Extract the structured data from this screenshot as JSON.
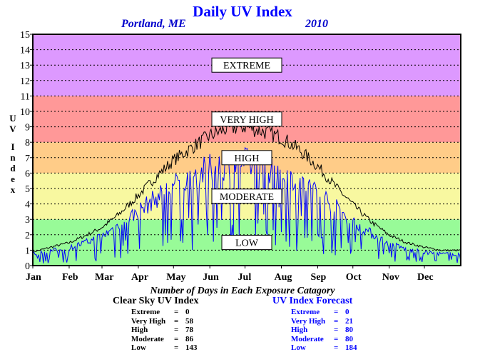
{
  "title": "Daily UV Index",
  "location": "Portland, ME",
  "year": "2010",
  "counts_title": "Number of Days in Each Exposure Catagory",
  "clear_sky": {
    "title": "Clear Sky UV Index",
    "rows": [
      {
        "cat": "Extreme",
        "eq": "=",
        "num": "0"
      },
      {
        "cat": "Very High",
        "eq": "=",
        "num": "58"
      },
      {
        "cat": "High",
        "eq": "=",
        "num": "78"
      },
      {
        "cat": "Moderate",
        "eq": "=",
        "num": "86"
      },
      {
        "cat": "Low",
        "eq": "=",
        "num": "143"
      }
    ]
  },
  "forecast": {
    "title": "UV Index Forecast",
    "rows": [
      {
        "cat": "Extreme",
        "eq": "=",
        "num": "0"
      },
      {
        "cat": "Very High",
        "eq": "=",
        "num": "21"
      },
      {
        "cat": "High",
        "eq": "=",
        "num": "80"
      },
      {
        "cat": "Moderate",
        "eq": "=",
        "num": "80"
      },
      {
        "cat": "Low",
        "eq": "=",
        "num": "184"
      }
    ]
  },
  "chart_data": {
    "type": "line",
    "title": "Daily UV Index",
    "ylabel": "UV Index",
    "xlabel": "",
    "ylim": [
      0,
      15
    ],
    "xlim": [
      1,
      366
    ],
    "y_ticks": [
      "0",
      "1",
      "2",
      "3",
      "4",
      "5",
      "6",
      "7",
      "8",
      "9",
      "10",
      "11",
      "12",
      "13",
      "14",
      "15"
    ],
    "x_ticks": [
      "Jan",
      "Feb",
      "Mar",
      "Apr",
      "May",
      "Jun",
      "Jul",
      "Aug",
      "Sep",
      "Oct",
      "Nov",
      "Dec"
    ],
    "grid": true,
    "bands": [
      {
        "label": "LOW",
        "from": 0,
        "to": 3,
        "color": "#98fb98"
      },
      {
        "label": "MODERATE",
        "from": 3,
        "to": 6,
        "color": "#f8f8a0"
      },
      {
        "label": "HIGH",
        "from": 6,
        "to": 8,
        "color": "#ffcc88"
      },
      {
        "label": "VERY HIGH",
        "from": 8,
        "to": 11,
        "color": "#ff9898"
      },
      {
        "label": "EXTREME",
        "from": 11,
        "to": 15,
        "color": "#dd99ff"
      }
    ],
    "series": [
      {
        "name": "Clear Sky UV Index",
        "color": "#000000",
        "x": [
          1,
          16,
          32,
          47,
          60,
          75,
          91,
          106,
          121,
          136,
          152,
          167,
          182,
          197,
          213,
          228,
          244,
          259,
          274,
          289,
          305,
          320,
          335,
          350,
          365
        ],
        "values": [
          0.9,
          1.2,
          1.5,
          2.0,
          2.5,
          3.4,
          4.6,
          5.8,
          6.9,
          7.7,
          8.5,
          9.0,
          9.1,
          8.8,
          8.4,
          7.6,
          6.5,
          5.2,
          4.0,
          2.9,
          2.0,
          1.5,
          1.2,
          1.0,
          1.0
        ]
      },
      {
        "name": "UV Index Forecast",
        "color": "#0000ff",
        "x": [
          1,
          16,
          32,
          47,
          60,
          75,
          91,
          106,
          121,
          136,
          152,
          167,
          182,
          197,
          213,
          228,
          244,
          259,
          274,
          289,
          305,
          320,
          335,
          350,
          365
        ],
        "values": [
          0.8,
          1.0,
          1.2,
          1.6,
          2.0,
          2.8,
          3.7,
          4.6,
          5.4,
          6.0,
          6.6,
          6.9,
          7.0,
          6.8,
          6.4,
          5.8,
          5.0,
          4.0,
          3.0,
          2.2,
          1.5,
          1.1,
          0.9,
          0.8,
          0.8
        ]
      }
    ]
  }
}
